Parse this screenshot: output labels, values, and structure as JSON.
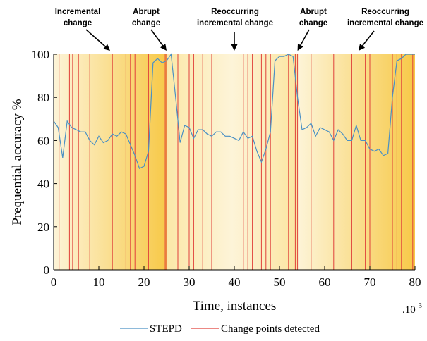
{
  "chart_data": {
    "type": "line",
    "xlabel": "Time, instances",
    "ylabel": "Prequential accuracy %",
    "x_multiplier_label": ".10",
    "x_multiplier_exp": "3",
    "xlim": [
      0,
      80
    ],
    "ylim": [
      0,
      100
    ],
    "xticks": [
      "0",
      "10",
      "20",
      "30",
      "40",
      "50",
      "60",
      "70",
      "80"
    ],
    "yticks": [
      "0",
      "20",
      "40",
      "60",
      "80",
      "100"
    ],
    "grid": false,
    "legend_position": "bottom",
    "series": [
      {
        "name": "STEPD",
        "color": "#4a90c4",
        "x": [
          0,
          1,
          2,
          3,
          4,
          5,
          6,
          7,
          8,
          9,
          10,
          11,
          12,
          13,
          14,
          15,
          16,
          17,
          18,
          19,
          20,
          21,
          22,
          23,
          24,
          25,
          26,
          27,
          28,
          29,
          30,
          31,
          32,
          33,
          34,
          35,
          36,
          37,
          38,
          39,
          40,
          41,
          42,
          43,
          44,
          45,
          46,
          47,
          48,
          49,
          50,
          51,
          52,
          53,
          54,
          55,
          56,
          57,
          58,
          59,
          60,
          61,
          62,
          63,
          64,
          65,
          66,
          67,
          68,
          69,
          70,
          71,
          72,
          73,
          74,
          75,
          76,
          77,
          78,
          79,
          80
        ],
        "y": [
          69,
          66,
          52,
          69,
          66,
          65,
          64,
          64,
          60,
          58,
          62,
          59,
          60,
          63,
          62,
          64,
          63,
          58,
          53,
          47,
          48,
          55,
          96,
          98,
          96,
          97,
          100,
          80,
          59,
          67,
          66,
          61,
          65,
          65,
          63,
          62,
          64,
          64,
          62,
          62,
          61,
          60,
          64,
          61,
          62,
          55,
          50,
          56,
          64,
          97,
          99,
          99,
          100,
          99,
          80,
          65,
          66,
          68,
          62,
          66,
          65,
          64,
          60,
          65,
          63,
          60,
          60,
          67,
          60,
          60,
          56,
          55,
          56,
          53,
          54,
          80,
          97,
          98,
          100,
          100,
          100
        ]
      }
    ],
    "change_points": {
      "name": "Change points detected",
      "color": "#e0403a",
      "x": [
        1.2,
        3.5,
        4.2,
        5.5,
        8,
        13,
        16,
        17,
        18,
        21,
        24.7,
        25,
        27.5,
        30,
        31,
        33,
        35,
        42,
        43,
        44,
        46,
        47,
        48,
        52,
        53.5,
        54,
        57,
        62,
        66,
        69,
        70,
        75,
        76,
        77,
        79.5
      ]
    },
    "annotations": [
      {
        "lines": [
          "Incremental",
          "change"
        ],
        "x": 12.5
      },
      {
        "lines": [
          "Abrupt",
          "change"
        ],
        "x": 25
      },
      {
        "lines": [
          "Reoccurring",
          "incremental change"
        ],
        "x": 40
      },
      {
        "lines": [
          "Abrupt",
          "change"
        ],
        "x": 54
      },
      {
        "lines": [
          "Reoccurring",
          "incremental change"
        ],
        "x": 67.5
      }
    ],
    "background_bands": [
      {
        "start": 0,
        "end": 25,
        "color": "#f7c948",
        "fade": "left-to-right"
      },
      {
        "start": 25,
        "end": 54,
        "color": "#f7c948",
        "fade": "center-light"
      },
      {
        "start": 54,
        "end": 80,
        "color": "#f7c948",
        "fade": "left-to-right"
      }
    ]
  }
}
